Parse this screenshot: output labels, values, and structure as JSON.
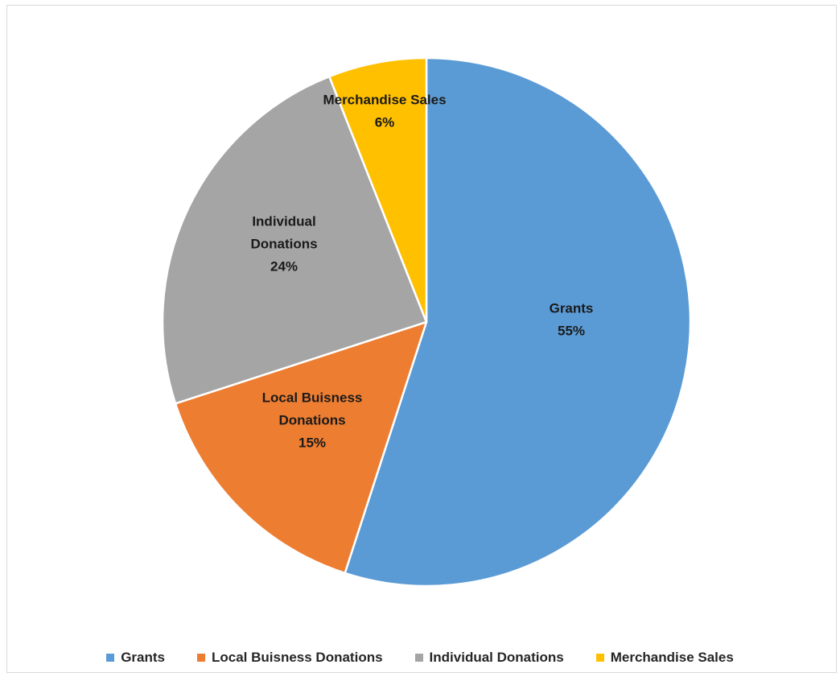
{
  "chart_data": {
    "type": "pie",
    "title": "",
    "categories": [
      "Grants",
      "Local Buisness Donations",
      "Individual Donations",
      "Merchandise Sales"
    ],
    "values": [
      55,
      15,
      24,
      6
    ],
    "data_labels": [
      {
        "lines": [
          "Grants",
          "55%"
        ]
      },
      {
        "lines": [
          "Local Buisness",
          "Donations",
          "15%"
        ]
      },
      {
        "lines": [
          "Individual",
          "Donations",
          "24%"
        ]
      },
      {
        "lines": [
          "Merchandise Sales",
          "6%"
        ]
      }
    ],
    "colors": [
      "#5B9BD5",
      "#ED7D31",
      "#A5A5A5",
      "#FFC000"
    ],
    "start_angle": "12 o'clock",
    "direction": "clockwise",
    "legend": {
      "position": "bottom",
      "entries": [
        "Grants",
        "Local Buisness Donations",
        "Individual Donations",
        "Merchandise Sales"
      ]
    }
  }
}
